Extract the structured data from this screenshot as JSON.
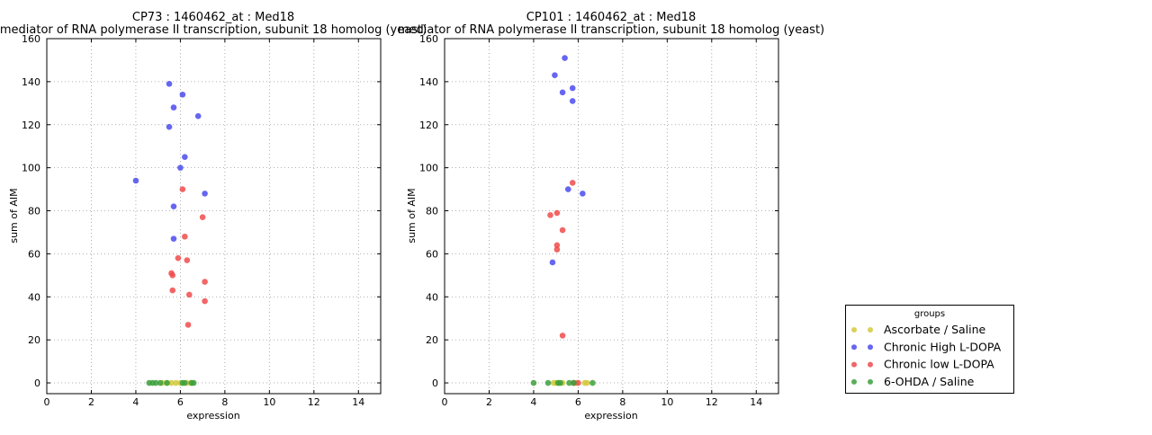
{
  "chart_data": [
    {
      "type": "scatter",
      "title_line1": "CP73 : 1460462_at : Med18",
      "title_line2": "mediator of RNA polymerase II transcription, subunit 18 homolog (yeast)",
      "xlabel": "expression",
      "ylabel": "sum of AIM",
      "xlim": [
        0,
        15
      ],
      "ylim": [
        -5,
        160
      ],
      "xticks": [
        "0",
        "2",
        "4",
        "6",
        "8",
        "10",
        "12",
        "14"
      ],
      "yticks": [
        "0",
        "20",
        "40",
        "60",
        "80",
        "100",
        "120",
        "140",
        "160"
      ],
      "grid": true,
      "series": [
        {
          "name": "Ascorbate / Saline",
          "color": "#d4c93c",
          "x": [
            5.2,
            5.4,
            5.6,
            5.8,
            6.0,
            6.3,
            6.5
          ],
          "y": [
            0,
            0,
            0,
            0,
            0,
            0,
            0
          ]
        },
        {
          "name": "Chronic High L-DOPA",
          "color": "#4b4bf0",
          "x": [
            5.5,
            6.1,
            5.7,
            6.8,
            5.5,
            6.2,
            6.0,
            4.0,
            7.1,
            5.7,
            5.7
          ],
          "y": [
            139,
            134,
            128,
            124,
            119,
            105,
            100,
            94,
            88,
            82,
            67
          ]
        },
        {
          "name": "Chronic low L-DOPA",
          "color": "#f04b4b",
          "x": [
            6.1,
            7.0,
            6.2,
            5.9,
            6.3,
            5.6,
            5.65,
            7.1,
            5.65,
            6.4,
            7.1,
            6.35
          ],
          "y": [
            90,
            77,
            68,
            58,
            57,
            51,
            50,
            47,
            43,
            41,
            38,
            27
          ]
        },
        {
          "name": "6-OHDA / Saline",
          "color": "#3ca03c",
          "x": [
            4.6,
            4.75,
            4.9,
            5.1,
            5.4,
            6.1,
            6.2,
            6.5,
            6.6
          ],
          "y": [
            0,
            0,
            0,
            0,
            0,
            0,
            0,
            0,
            0
          ]
        }
      ]
    },
    {
      "type": "scatter",
      "title_line1": "CP101 : 1460462_at : Med18",
      "title_line2": "mediator of RNA polymerase II transcription, subunit 18 homolog (yeast)",
      "xlabel": "expression",
      "ylabel": "sum of AIM",
      "xlim": [
        0,
        15
      ],
      "ylim": [
        -5,
        160
      ],
      "xticks": [
        "0",
        "2",
        "4",
        "6",
        "8",
        "10",
        "12",
        "14"
      ],
      "yticks": [
        "0",
        "20",
        "40",
        "60",
        "80",
        "100",
        "120",
        "140",
        "160"
      ],
      "grid": true,
      "series": [
        {
          "name": "Ascorbate / Saline",
          "color": "#d4c93c",
          "x": [
            4.9,
            5.0,
            5.1,
            5.3,
            5.9,
            6.3,
            6.4
          ],
          "y": [
            0,
            0,
            0,
            0,
            0,
            0,
            0
          ]
        },
        {
          "name": "Chronic High L-DOPA",
          "color": "#4b4bf0",
          "x": [
            5.4,
            4.95,
            5.75,
            5.3,
            5.75,
            5.55,
            6.2,
            4.85
          ],
          "y": [
            151,
            143,
            137,
            135,
            131,
            90,
            88,
            56
          ]
        },
        {
          "name": "Chronic low L-DOPA",
          "color": "#f04b4b",
          "x": [
            5.75,
            5.05,
            4.75,
            5.3,
            5.05,
            5.05,
            5.3,
            5.8,
            6.0
          ],
          "y": [
            93,
            79,
            78,
            71,
            64,
            62,
            22,
            0,
            0
          ]
        },
        {
          "name": "6-OHDA / Saline",
          "color": "#3ca03c",
          "x": [
            4.0,
            4.65,
            5.1,
            5.2,
            5.6,
            5.8,
            6.65
          ],
          "y": [
            0,
            0,
            0,
            0,
            0,
            0,
            0
          ]
        }
      ]
    }
  ],
  "legend": {
    "title": "groups",
    "placement": "bottom-right",
    "entries": [
      {
        "label": "Ascorbate / Saline",
        "color": "#d4c93c"
      },
      {
        "label": "Chronic High L-DOPA",
        "color": "#4b4bf0"
      },
      {
        "label": "Chronic low L-DOPA",
        "color": "#f04b4b"
      },
      {
        "label": "6-OHDA / Saline",
        "color": "#3ca03c"
      }
    ]
  }
}
